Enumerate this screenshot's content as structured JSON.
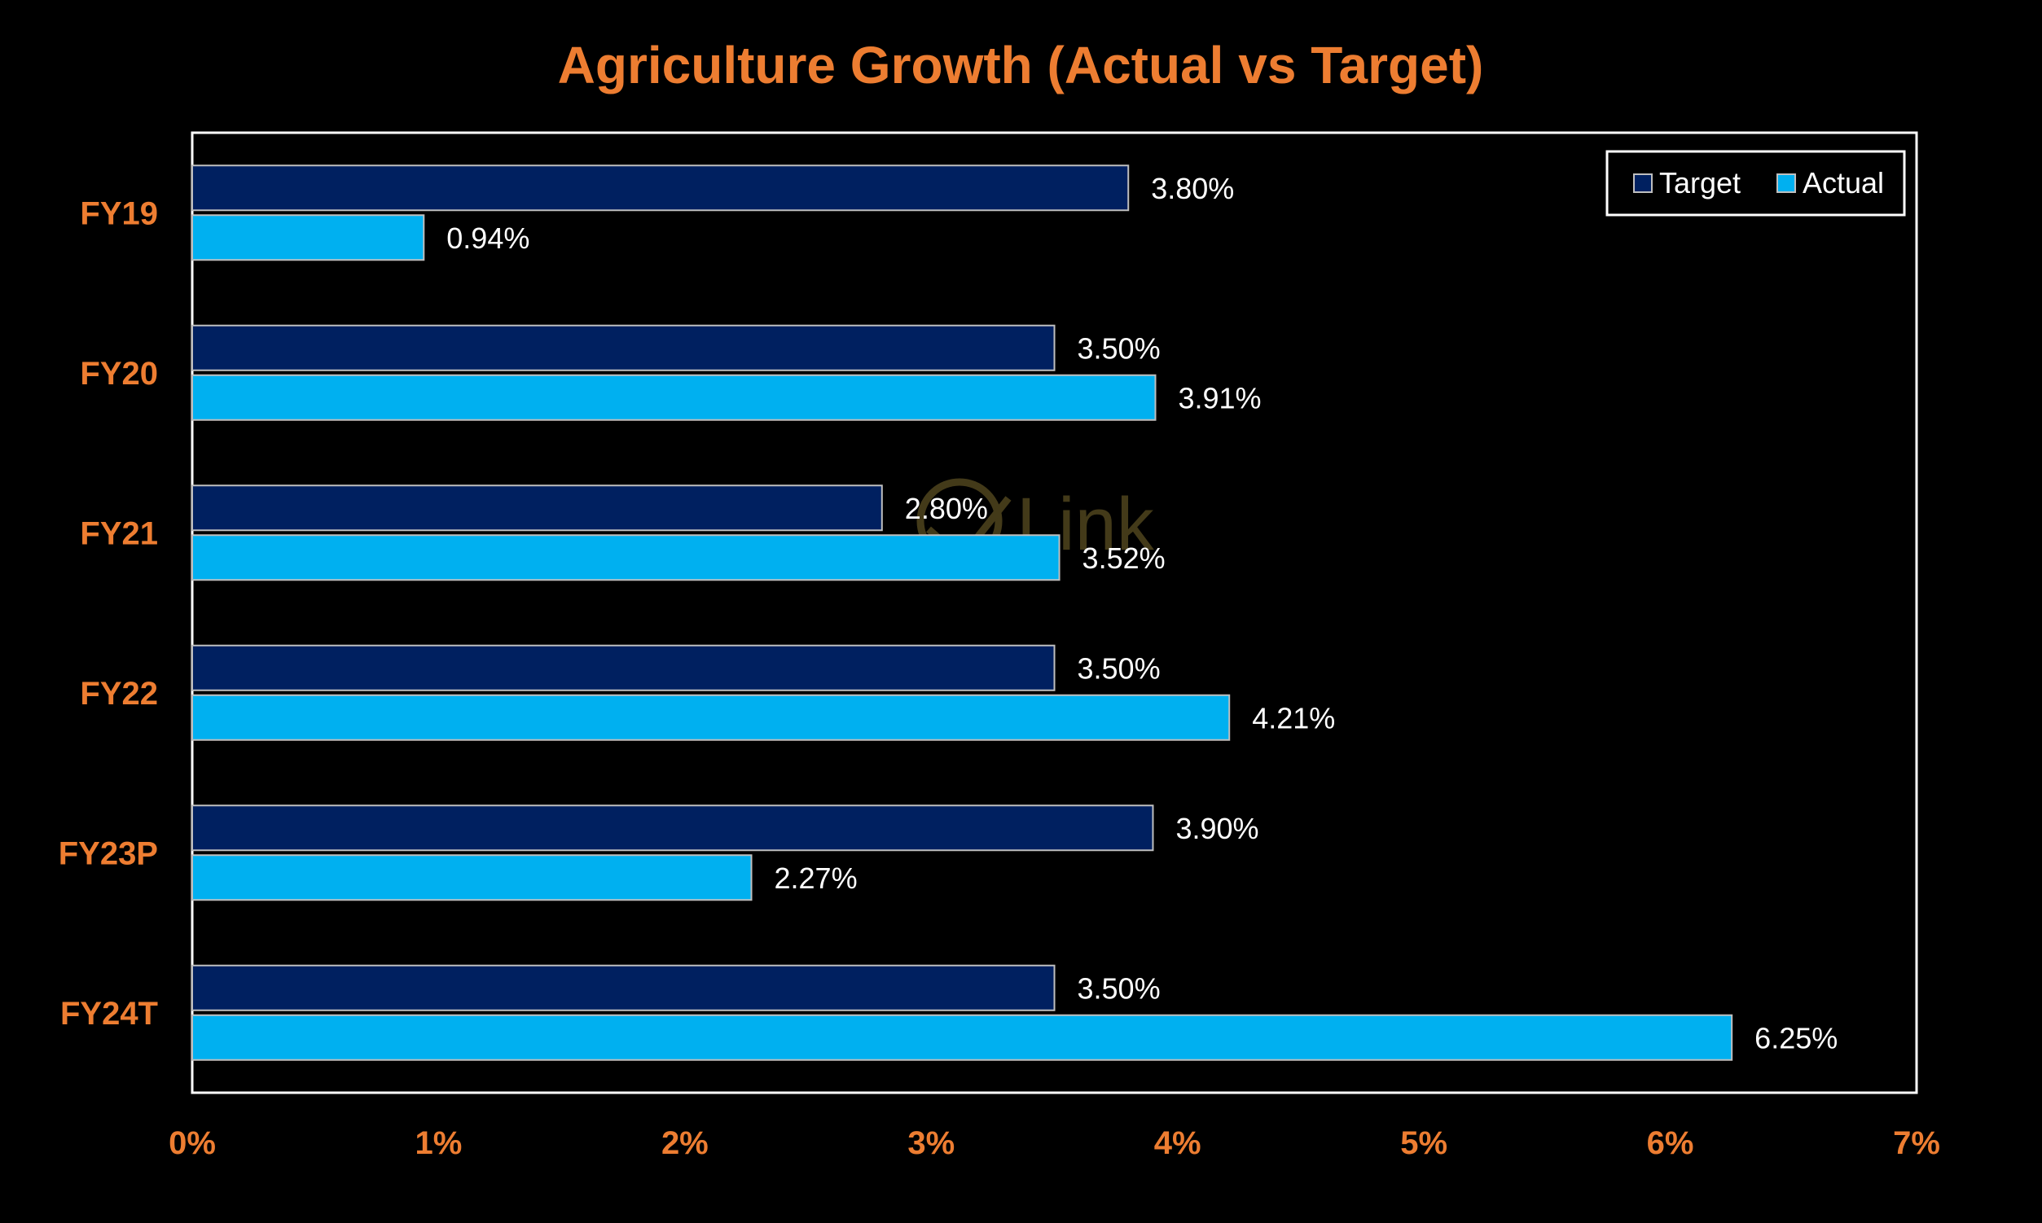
{
  "colors": {
    "background": "#000000",
    "accent": "#ED7D31",
    "target": "#002060",
    "actual": "#00B0F0",
    "text": "#FFFFFF",
    "frame": "#FFFFFF",
    "bar_border": "#BFBFBF",
    "watermark": "#7A6A2E"
  },
  "watermark": {
    "text": "Link"
  },
  "chart_data": {
    "type": "bar",
    "orientation": "horizontal",
    "title": "Agriculture Growth (Actual vs Target)",
    "categories": [
      "FY19",
      "FY20",
      "FY21",
      "FY22",
      "FY23P",
      "FY24T"
    ],
    "series": [
      {
        "name": "Target",
        "values": [
          3.8,
          3.5,
          2.8,
          3.5,
          3.9,
          3.5
        ],
        "labels": [
          "3.80%",
          "3.50%",
          "2.80%",
          "3.50%",
          "3.90%",
          "3.50%"
        ]
      },
      {
        "name": "Actual",
        "values": [
          0.94,
          3.91,
          3.52,
          4.21,
          2.27,
          6.25
        ],
        "labels": [
          "0.94%",
          "3.91%",
          "3.52%",
          "4.21%",
          "2.27%",
          "6.25%"
        ]
      }
    ],
    "xlim": [
      0,
      7
    ],
    "xticks": [
      0,
      1,
      2,
      3,
      4,
      5,
      6,
      7
    ],
    "xtick_labels": [
      "0%",
      "1%",
      "2%",
      "3%",
      "4%",
      "5%",
      "6%",
      "7%"
    ],
    "xlabel": "",
    "ylabel": "",
    "grid": false,
    "legend_position": "top-right"
  }
}
